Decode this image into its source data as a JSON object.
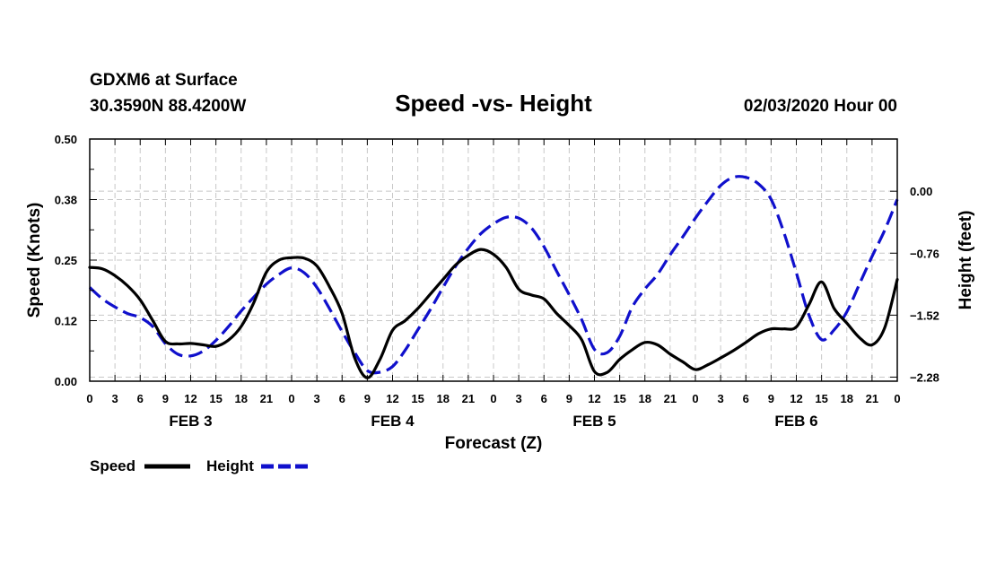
{
  "chart_data": {
    "type": "line",
    "station": "GDXM6 at Surface",
    "location": "30.3590N 88.4200W",
    "title": "Speed -vs- Height",
    "datetime": "02/03/2020 Hour 00",
    "xlabel": "Forecast (Z)",
    "ylabel_left": "Speed (Knots)",
    "ylabel_right": "Height (feet)",
    "x_range": [
      0,
      96
    ],
    "ylim_left": [
      0.0,
      0.5
    ],
    "ylim_right": [
      -2.33,
      0.64
    ],
    "x_tick_hours": [
      0,
      3,
      6,
      9,
      12,
      15,
      18,
      21,
      24,
      27,
      30,
      33,
      36,
      39,
      42,
      45,
      48,
      51,
      54,
      57,
      60,
      63,
      66,
      69,
      72,
      75,
      78,
      81,
      84,
      87,
      90,
      93,
      96
    ],
    "x_tick_labels": [
      "0",
      "3",
      "6",
      "9",
      "12",
      "15",
      "18",
      "21",
      "0",
      "3",
      "6",
      "9",
      "12",
      "15",
      "18",
      "21",
      "0",
      "3",
      "6",
      "9",
      "12",
      "15",
      "18",
      "21",
      "0",
      "3",
      "6",
      "9",
      "12",
      "15",
      "18",
      "21",
      "0"
    ],
    "day_labels": [
      {
        "hour": 12,
        "label": "FEB 3"
      },
      {
        "hour": 36,
        "label": "FEB 4"
      },
      {
        "hour": 60,
        "label": "FEB 5"
      },
      {
        "hour": 84,
        "label": "FEB 6"
      }
    ],
    "y_ticks_left": [
      {
        "value": 0.0,
        "label": "0.00"
      },
      {
        "value": 0.125,
        "label": "0.12"
      },
      {
        "value": 0.25,
        "label": "0.25"
      },
      {
        "value": 0.375,
        "label": "0.38"
      },
      {
        "value": 0.5,
        "label": "0.50"
      }
    ],
    "y_ticks_right": [
      {
        "value": -2.28,
        "label": "−2.28"
      },
      {
        "value": -1.52,
        "label": "−1.52"
      },
      {
        "value": -0.76,
        "label": "−0.76"
      },
      {
        "value": 0.0,
        "label": "0.00"
      }
    ],
    "grid": true,
    "legend": "bottom-left",
    "series": [
      {
        "name": "Speed",
        "axis": "left",
        "color": "#000000",
        "style": "solid",
        "x": [
          0,
          1.5,
          3,
          4.5,
          6,
          7.5,
          9,
          10.5,
          12,
          13.5,
          15,
          16.5,
          18,
          19.5,
          21,
          22.5,
          24,
          25.5,
          27,
          28.5,
          30,
          31.5,
          33,
          34.5,
          36,
          37.5,
          39,
          40.5,
          42,
          43.5,
          45,
          46.5,
          48,
          49.5,
          51,
          52.5,
          54,
          55.5,
          57,
          58.5,
          60,
          61.5,
          63,
          64.5,
          66,
          67.5,
          69,
          70.5,
          72,
          73.5,
          75,
          76.5,
          78,
          79.5,
          81,
          82.5,
          84,
          85.5,
          87,
          88.5,
          90,
          91.5,
          93,
          94.5,
          96
        ],
        "values": [
          0.235,
          0.232,
          0.218,
          0.197,
          0.168,
          0.125,
          0.082,
          0.077,
          0.078,
          0.075,
          0.072,
          0.085,
          0.113,
          0.162,
          0.225,
          0.25,
          0.255,
          0.254,
          0.238,
          0.195,
          0.14,
          0.048,
          0.007,
          0.045,
          0.105,
          0.125,
          0.15,
          0.18,
          0.21,
          0.24,
          0.26,
          0.272,
          0.262,
          0.235,
          0.19,
          0.178,
          0.17,
          0.14,
          0.115,
          0.085,
          0.02,
          0.018,
          0.045,
          0.065,
          0.08,
          0.075,
          0.056,
          0.04,
          0.024,
          0.034,
          0.048,
          0.063,
          0.08,
          0.098,
          0.108,
          0.108,
          0.112,
          0.158,
          0.205,
          0.15,
          0.12,
          0.09,
          0.075,
          0.11,
          0.21
        ]
      },
      {
        "name": "Height",
        "axis": "right",
        "color": "#1010cc",
        "style": "dashed",
        "x": [
          0,
          1.5,
          3,
          4.5,
          6,
          7.5,
          9,
          10.5,
          12,
          13.5,
          15,
          16.5,
          18,
          19.5,
          21,
          22.5,
          24,
          25.5,
          27,
          28.5,
          30,
          31.5,
          33,
          34.5,
          36,
          37.5,
          39,
          40.5,
          42,
          43.5,
          45,
          46.5,
          48,
          49.5,
          51,
          52.5,
          54,
          55.5,
          57,
          58.5,
          60,
          61.5,
          63,
          64.5,
          66,
          67.5,
          69,
          70.5,
          72,
          73.5,
          75,
          76.5,
          78,
          79.5,
          81,
          82.5,
          84,
          85.5,
          87,
          88.5,
          90,
          91.5,
          93,
          94.5,
          96
        ],
        "values": [
          -1.18,
          -1.32,
          -1.42,
          -1.5,
          -1.55,
          -1.66,
          -1.87,
          -2.0,
          -2.02,
          -1.96,
          -1.83,
          -1.66,
          -1.47,
          -1.3,
          -1.14,
          -1.02,
          -0.94,
          -1.0,
          -1.18,
          -1.44,
          -1.72,
          -1.98,
          -2.2,
          -2.22,
          -2.15,
          -1.95,
          -1.7,
          -1.45,
          -1.18,
          -0.92,
          -0.7,
          -0.52,
          -0.4,
          -0.32,
          -0.33,
          -0.45,
          -0.68,
          -0.98,
          -1.27,
          -1.58,
          -1.94,
          -1.98,
          -1.78,
          -1.42,
          -1.2,
          -1.02,
          -0.78,
          -0.56,
          -0.33,
          -0.12,
          0.07,
          0.17,
          0.17,
          0.09,
          -0.1,
          -0.5,
          -1.0,
          -1.52,
          -1.82,
          -1.7,
          -1.48,
          -1.14,
          -0.8,
          -0.48,
          -0.1
        ]
      }
    ]
  },
  "legend": {
    "speed_label": "Speed",
    "height_label": "Height"
  },
  "colors": {
    "speed": "#000000",
    "height": "#1010cc",
    "grid": "#c8c8c8",
    "background": "#ffffff"
  }
}
